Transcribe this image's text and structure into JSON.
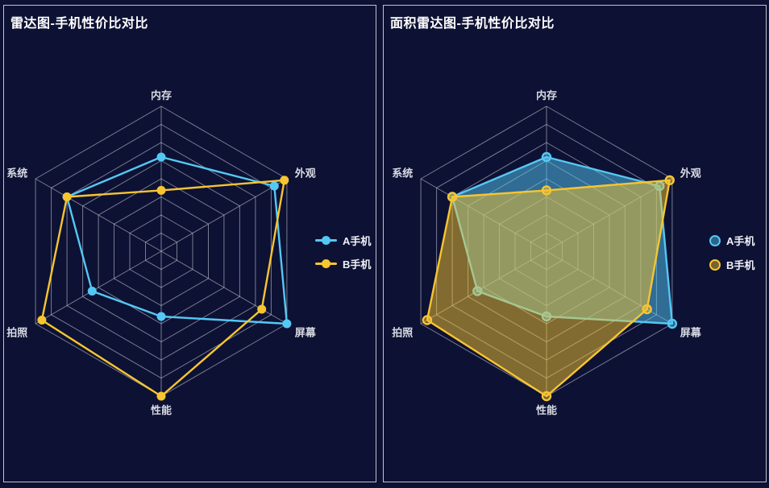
{
  "theme": {
    "background": "#0d1133",
    "panel_border": "#c0c3cc",
    "grid_color": "rgba(208,211,221,0.55)",
    "title_color": "#ffffff",
    "axis_label_color": "#d8dbe3",
    "legend_text_color": "#eef1f6",
    "series_a_color": "#54c8f4",
    "series_b_color": "#f7c530"
  },
  "chart_data": [
    {
      "type": "radar",
      "title": "雷达图-手机性价比对比",
      "rings": 8,
      "area_fill": false,
      "fill_opacity": 0,
      "legend_position": "middle-right",
      "legend_icon": "line-dot-icon",
      "indicators": [
        {
          "name": "内存",
          "max": 100
        },
        {
          "name": "外观",
          "max": 100
        },
        {
          "name": "屏幕",
          "max": 100
        },
        {
          "name": "性能",
          "max": 100
        },
        {
          "name": "拍照",
          "max": 100
        },
        {
          "name": "系统",
          "max": 100
        }
      ],
      "series": [
        {
          "id": "a-phone",
          "name": "A手机",
          "color": "#54c8f4",
          "values": [
            65,
            90,
            100,
            45,
            55,
            75
          ]
        },
        {
          "id": "b-phone",
          "name": "B手机",
          "color": "#f7c530",
          "values": [
            42,
            98,
            80,
            100,
            95,
            75
          ]
        }
      ]
    },
    {
      "type": "radar",
      "title": "面积雷达图-手机性价比对比",
      "rings": 8,
      "area_fill": true,
      "fill_opacity": 0.5,
      "legend_position": "middle-right",
      "legend_icon": "circle-icon",
      "indicators": [
        {
          "name": "内存",
          "max": 100
        },
        {
          "name": "外观",
          "max": 100
        },
        {
          "name": "屏幕",
          "max": 100
        },
        {
          "name": "性能",
          "max": 100
        },
        {
          "name": "拍照",
          "max": 100
        },
        {
          "name": "系统",
          "max": 100
        }
      ],
      "series": [
        {
          "id": "a-phone",
          "name": "A手机",
          "color": "#54c8f4",
          "values": [
            65,
            90,
            100,
            45,
            55,
            75
          ]
        },
        {
          "id": "b-phone",
          "name": "B手机",
          "color": "#f7c530",
          "values": [
            42,
            98,
            80,
            100,
            95,
            75
          ]
        }
      ]
    }
  ]
}
